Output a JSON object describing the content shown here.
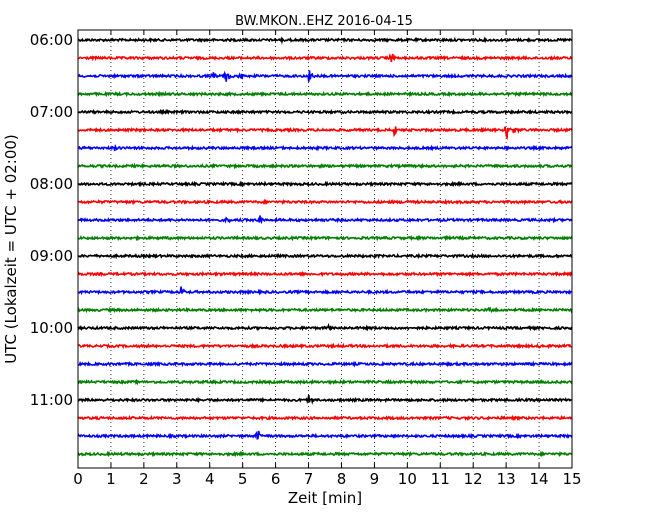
{
  "chart_data": {
    "type": "line",
    "title": "BW.MKON..EHZ 2016-04-15",
    "xlabel": "Zeit  [min]",
    "ylabel": "UTC (Lokalzeit = UTC + 02:00)",
    "xlim": [
      0,
      15
    ],
    "x_ticks": [
      0,
      1,
      2,
      3,
      4,
      5,
      6,
      7,
      8,
      9,
      10,
      11,
      12,
      13,
      14,
      15
    ],
    "y_tick_labels": [
      "06:00",
      "07:00",
      "08:00",
      "09:00",
      "10:00",
      "11:00"
    ],
    "grid": "vertical dotted",
    "trace_colors": [
      "#000000",
      "#ff0000",
      "#0000ff",
      "#008000"
    ],
    "traces": [
      {
        "time": "06:00",
        "color": "#000000",
        "events": [
          {
            "x": 6.2,
            "amp": 0.35
          }
        ]
      },
      {
        "time": "06:15",
        "color": "#ff0000",
        "events": [
          {
            "x": 9.5,
            "amp": 0.9
          }
        ]
      },
      {
        "time": "06:30",
        "color": "#0000ff",
        "events": [
          {
            "x": 4.1,
            "amp": 0.7
          },
          {
            "x": 4.5,
            "amp": 0.9
          },
          {
            "x": 4.9,
            "amp": 0.5
          },
          {
            "x": 7.0,
            "amp": 0.9
          }
        ]
      },
      {
        "time": "06:45",
        "color": "#008000",
        "events": []
      },
      {
        "time": "07:00",
        "color": "#000000",
        "events": []
      },
      {
        "time": "07:15",
        "color": "#ff0000",
        "events": [
          {
            "x": 9.6,
            "amp": 0.7
          },
          {
            "x": 13.0,
            "amp": 1.0
          },
          {
            "x": 13.25,
            "amp": 0.7
          }
        ]
      },
      {
        "time": "07:30",
        "color": "#0000ff",
        "events": [
          {
            "x": 1.1,
            "amp": 0.3
          }
        ]
      },
      {
        "time": "07:45",
        "color": "#008000",
        "events": []
      },
      {
        "time": "08:00",
        "color": "#000000",
        "events": [
          {
            "x": 5.7,
            "amp": 0.3
          }
        ]
      },
      {
        "time": "08:15",
        "color": "#ff0000",
        "events": [
          {
            "x": 10.0,
            "amp": 0.3
          }
        ]
      },
      {
        "time": "08:30",
        "color": "#0000ff",
        "events": [
          {
            "x": 5.5,
            "amp": 0.8
          },
          {
            "x": 4.5,
            "amp": 0.3
          }
        ]
      },
      {
        "time": "08:45",
        "color": "#008000",
        "events": []
      },
      {
        "time": "09:00",
        "color": "#000000",
        "events": []
      },
      {
        "time": "09:15",
        "color": "#ff0000",
        "events": []
      },
      {
        "time": "09:30",
        "color": "#0000ff",
        "events": [
          {
            "x": 3.1,
            "amp": 0.7
          },
          {
            "x": 7.0,
            "amp": 0.3
          }
        ]
      },
      {
        "time": "09:45",
        "color": "#008000",
        "events": [
          {
            "x": 12.5,
            "amp": 0.3
          }
        ]
      },
      {
        "time": "10:00",
        "color": "#000000",
        "events": [
          {
            "x": 7.6,
            "amp": 0.3
          }
        ]
      },
      {
        "time": "10:15",
        "color": "#ff0000",
        "events": [
          {
            "x": 14.0,
            "amp": 0.3
          }
        ]
      },
      {
        "time": "10:30",
        "color": "#0000ff",
        "events": [
          {
            "x": 4.4,
            "amp": 0.35
          },
          {
            "x": 9.1,
            "amp": 0.3
          }
        ]
      },
      {
        "time": "10:45",
        "color": "#008000",
        "events": []
      },
      {
        "time": "11:00",
        "color": "#000000",
        "events": [
          {
            "x": 7.0,
            "amp": 0.7
          },
          {
            "x": 14.0,
            "amp": 0.25
          }
        ]
      },
      {
        "time": "11:15",
        "color": "#ff0000",
        "events": []
      },
      {
        "time": "11:30",
        "color": "#0000ff",
        "events": [
          {
            "x": 5.45,
            "amp": 0.9
          },
          {
            "x": 14.1,
            "amp": 0.2
          }
        ]
      },
      {
        "time": "11:45",
        "color": "#008000",
        "events": []
      }
    ]
  }
}
